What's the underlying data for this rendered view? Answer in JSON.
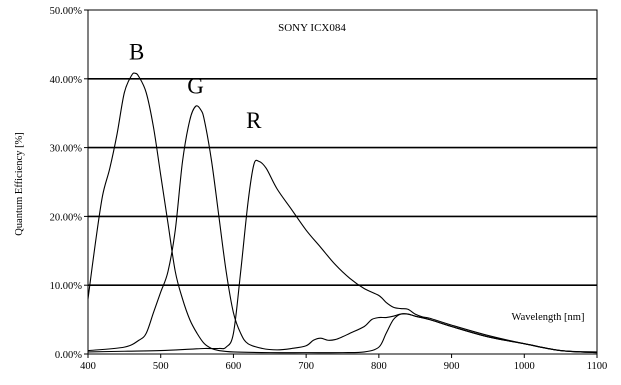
{
  "chart_data": {
    "type": "line",
    "title": "SONY ICX084",
    "xlabel": "Wavelength [nm]",
    "ylabel": "Quantum Efficiency [%]",
    "xlim": [
      400,
      1100
    ],
    "ylim": [
      0,
      50
    ],
    "x_ticks": [
      "400",
      "500",
      "600",
      "700",
      "800",
      "900",
      "1000",
      "1100"
    ],
    "y_ticks": [
      "0.00%",
      "10.00%",
      "20.00%",
      "30.00%",
      "40.00%",
      "50.00%"
    ],
    "grid": "horizontal",
    "series": [
      {
        "name": "B",
        "points": [
          [
            400,
            8
          ],
          [
            410,
            16
          ],
          [
            420,
            23
          ],
          [
            430,
            27
          ],
          [
            440,
            32
          ],
          [
            450,
            38
          ],
          [
            460,
            40.5
          ],
          [
            465,
            40.8
          ],
          [
            470,
            40.3
          ],
          [
            480,
            38
          ],
          [
            490,
            33
          ],
          [
            500,
            26
          ],
          [
            510,
            19
          ],
          [
            520,
            12
          ],
          [
            530,
            8
          ],
          [
            540,
            5
          ],
          [
            550,
            3
          ],
          [
            560,
            1.5
          ],
          [
            570,
            0.8
          ],
          [
            580,
            0.5
          ],
          [
            600,
            0.3
          ],
          [
            650,
            0.2
          ],
          [
            700,
            0.2
          ],
          [
            750,
            0.2
          ],
          [
            780,
            0.3
          ],
          [
            800,
            1
          ],
          [
            810,
            3
          ],
          [
            820,
            5
          ],
          [
            830,
            5.8
          ],
          [
            840,
            5.8
          ],
          [
            850,
            5.5
          ],
          [
            870,
            5
          ],
          [
            900,
            4
          ],
          [
            950,
            2.5
          ],
          [
            1000,
            1.5
          ],
          [
            1050,
            0.5
          ],
          [
            1100,
            0.2
          ]
        ]
      },
      {
        "name": "G",
        "points": [
          [
            400,
            0.5
          ],
          [
            450,
            1
          ],
          [
            470,
            2
          ],
          [
            480,
            3
          ],
          [
            490,
            6
          ],
          [
            500,
            9
          ],
          [
            510,
            12
          ],
          [
            520,
            18
          ],
          [
            530,
            28
          ],
          [
            540,
            34
          ],
          [
            548,
            36
          ],
          [
            555,
            35.5
          ],
          [
            560,
            34
          ],
          [
            570,
            28
          ],
          [
            580,
            20
          ],
          [
            590,
            12
          ],
          [
            600,
            6
          ],
          [
            610,
            3
          ],
          [
            620,
            1.5
          ],
          [
            640,
            0.8
          ],
          [
            660,
            0.6
          ],
          [
            680,
            0.8
          ],
          [
            700,
            1.2
          ],
          [
            710,
            2
          ],
          [
            720,
            2.3
          ],
          [
            730,
            2
          ],
          [
            740,
            2.1
          ],
          [
            750,
            2.5
          ],
          [
            760,
            3
          ],
          [
            780,
            4
          ],
          [
            790,
            5
          ],
          [
            800,
            5.3
          ],
          [
            810,
            5.3
          ],
          [
            820,
            5.5
          ],
          [
            830,
            5.8
          ],
          [
            840,
            5.8
          ],
          [
            850,
            5.5
          ],
          [
            870,
            5
          ],
          [
            900,
            4
          ],
          [
            950,
            2.5
          ],
          [
            1000,
            1.5
          ],
          [
            1050,
            0.5
          ],
          [
            1100,
            0.2
          ]
        ]
      },
      {
        "name": "R",
        "points": [
          [
            400,
            0.3
          ],
          [
            450,
            0.4
          ],
          [
            500,
            0.5
          ],
          [
            540,
            0.7
          ],
          [
            560,
            0.8
          ],
          [
            580,
            0.8
          ],
          [
            590,
            1
          ],
          [
            600,
            3
          ],
          [
            610,
            12
          ],
          [
            620,
            22
          ],
          [
            628,
            27.5
          ],
          [
            635,
            28
          ],
          [
            645,
            27
          ],
          [
            660,
            24
          ],
          [
            680,
            21
          ],
          [
            700,
            18
          ],
          [
            720,
            15.5
          ],
          [
            740,
            13
          ],
          [
            760,
            11
          ],
          [
            780,
            9.5
          ],
          [
            800,
            8.5
          ],
          [
            810,
            7.5
          ],
          [
            820,
            6.8
          ],
          [
            830,
            6.6
          ],
          [
            840,
            6.5
          ],
          [
            850,
            5.8
          ],
          [
            860,
            5.4
          ],
          [
            870,
            5.2
          ],
          [
            900,
            4.2
          ],
          [
            950,
            2.7
          ],
          [
            1000,
            1.5
          ],
          [
            1050,
            0.5
          ],
          [
            1100,
            0.3
          ]
        ]
      }
    ],
    "label_positions": {
      "B": [
        467,
        44
      ],
      "G": [
        548,
        39
      ],
      "R": [
        628,
        34
      ]
    }
  }
}
